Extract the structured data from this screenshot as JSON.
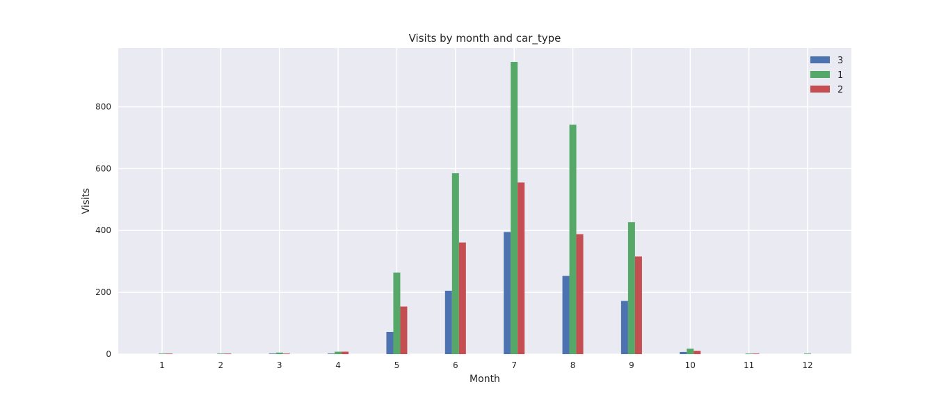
{
  "chart_data": {
    "type": "bar",
    "title": "Visits by month and car_type",
    "xlabel": "Month",
    "ylabel": "Visits",
    "categories": [
      "1",
      "2",
      "3",
      "4",
      "5",
      "6",
      "7",
      "8",
      "9",
      "10",
      "11",
      "12"
    ],
    "series": [
      {
        "name": "3",
        "color": "#4c72b0",
        "values": [
          0,
          0,
          2,
          2,
          72,
          205,
          395,
          253,
          172,
          7,
          0,
          0
        ]
      },
      {
        "name": "1",
        "color": "#55a868",
        "values": [
          2,
          2,
          5,
          8,
          264,
          585,
          945,
          742,
          427,
          18,
          2,
          2
        ]
      },
      {
        "name": "2",
        "color": "#c44e52",
        "values": [
          2,
          2,
          2,
          8,
          154,
          361,
          555,
          388,
          316,
          11,
          2,
          0
        ]
      }
    ],
    "yticks": [
      0,
      200,
      400,
      600,
      800
    ],
    "ylim": [
      0,
      990
    ],
    "grid": true,
    "legend_position": "top-right",
    "background_color": "#eaeaf2"
  }
}
